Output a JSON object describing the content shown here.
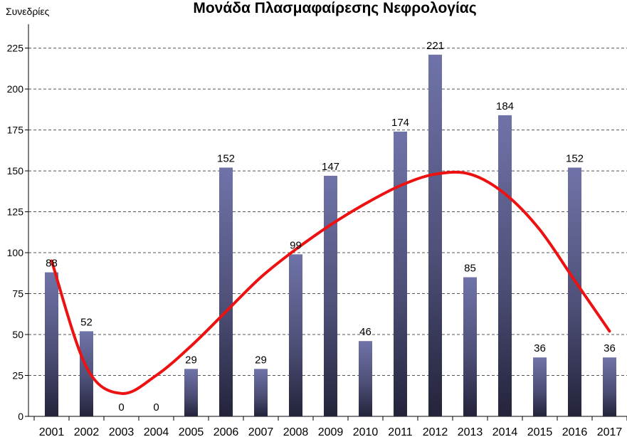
{
  "chart_data": {
    "type": "bar",
    "title": "Μονάδα Πλασμαφαίρεσης Νεφρολογίας",
    "ylabel": "Συνεδρίες",
    "xlabel": "",
    "categories": [
      "2001",
      "2002",
      "2003",
      "2004",
      "2005",
      "2006",
      "2007",
      "2008",
      "2009",
      "2010",
      "2011",
      "2012",
      "2013",
      "2014",
      "2015",
      "2016",
      "2017"
    ],
    "values": [
      88,
      52,
      0,
      0,
      29,
      152,
      29,
      99,
      147,
      46,
      174,
      221,
      85,
      184,
      36,
      152,
      36
    ],
    "ylim": [
      0,
      237
    ],
    "yticks": [
      0,
      25,
      50,
      75,
      100,
      125,
      150,
      175,
      200,
      225
    ],
    "grid": true,
    "series_color": "#6a6b9c",
    "trendline": {
      "type": "polynomial",
      "color": "#ee1111",
      "values": [
        95,
        30,
        14,
        25,
        43,
        64,
        85,
        102,
        117,
        130,
        141,
        148,
        148,
        136,
        114,
        83,
        52
      ]
    }
  }
}
